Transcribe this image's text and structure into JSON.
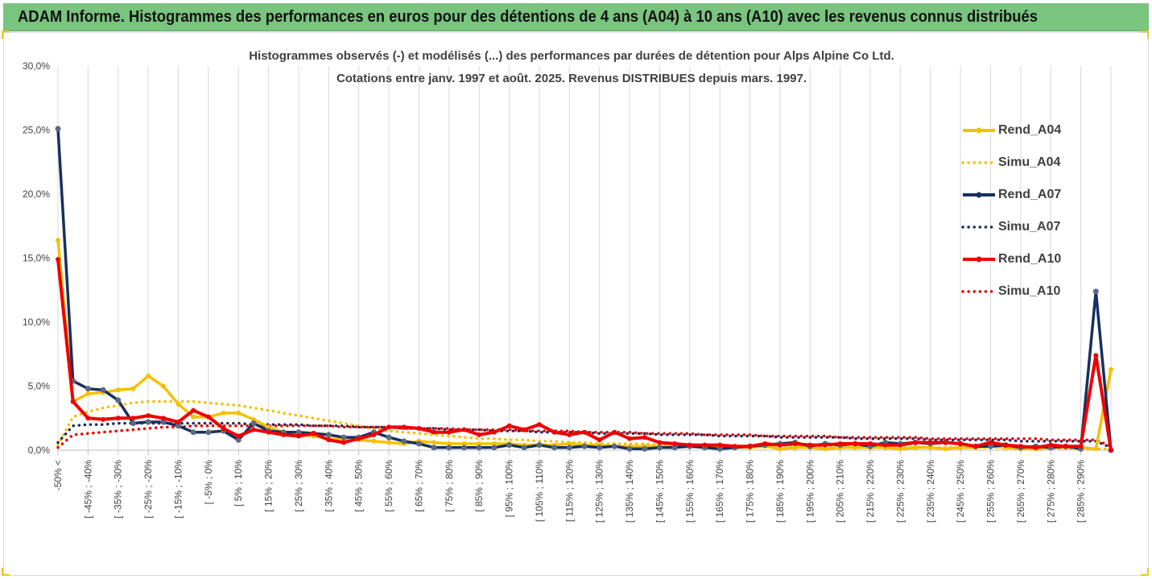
{
  "header": {
    "title": "ADAM Informe. Histogrammes des performances en euros pour des détentions de 4 ans (A04) à 10 ans (A10) avec les revenus connus distribués"
  },
  "chart_data": {
    "type": "line",
    "title_line1": "Histogrammes observés (-) et modélisés (...)  des performances par durées de détention pour Alps Alpine Co Ltd.",
    "title_line2": "Cotations entre janv. 1997 et août. 2025. Revenus DISTRIBUES depuis mars. 1997.",
    "y_ticks": [
      "0,0%",
      "5,0%",
      "10,0%",
      "15,0%",
      "20,0%",
      "25,0%",
      "30,0%"
    ],
    "ylim": [
      0,
      30
    ],
    "x_tick_labels": [
      "-50% <",
      "[ -45% ; -40%",
      "[ -35% ; -30%",
      "[ -25% ; -20%",
      "[ -15% ; -10%",
      "[ -5% ; 0%",
      "[ 5% ; 10%",
      "[ 15% ; 20%",
      "[ 25% ; 30%",
      "[ 35% ; 40%",
      "[ 45% ; 50%",
      "[ 55% ; 60%",
      "[ 65% ; 70%",
      "[ 75% ; 80%",
      "[ 85% ; 90%",
      "[ 95% ; 100%",
      "[ 105% ; 110%",
      "[ 115% ; 120%",
      "[ 125% ; 130%",
      "[ 135% ; 140%",
      "[ 145% ; 150%",
      "[ 155% ; 160%",
      "[ 165% ; 170%",
      "[ 175% ; 180%",
      "[ 185% ; 190%",
      "[ 195% ; 200%",
      "[ 205% ; 210%",
      "[ 215% ; 220%",
      "[ 225% ; 230%",
      "[ 235% ; 240%",
      "[ 245% ; 250%",
      "[ 255% ; 260%",
      "[ 265% ; 270%",
      "[ 275% ; 280%",
      "[ 285% ; 290%"
    ],
    "legend_position": "right",
    "grid": "vertical",
    "series": [
      {
        "name": "Rend_A04",
        "style": "solid",
        "color": "#f5c000",
        "values": [
          16.4,
          3.8,
          4.4,
          4.5,
          4.7,
          4.8,
          5.8,
          5.0,
          3.6,
          2.6,
          2.6,
          2.9,
          2.9,
          2.4,
          1.8,
          1.4,
          1.2,
          1.1,
          0.9,
          0.8,
          0.8,
          0.7,
          0.6,
          0.5,
          0.7,
          0.6,
          0.5,
          0.5,
          0.5,
          0.5,
          0.5,
          0.4,
          0.4,
          0.4,
          0.5,
          0.4,
          0.4,
          0.3,
          0.3,
          0.3,
          0.3,
          0.3,
          0.3,
          0.2,
          0.2,
          0.2,
          0.2,
          0.3,
          0.1,
          0.2,
          0.2,
          0.1,
          0.2,
          0.2,
          0.2,
          0.2,
          0.1,
          0.2,
          0.2,
          0.1,
          0.2,
          0.2,
          0.3,
          0.2,
          0.1,
          0.1,
          0.2,
          0.2,
          0.2,
          0.1,
          6.3
        ]
      },
      {
        "name": "Simu_A04",
        "style": "dotted",
        "color": "#f5c000",
        "values": [
          0.4,
          2.6,
          3.0,
          3.3,
          3.5,
          3.7,
          3.8,
          3.8,
          3.8,
          3.8,
          3.7,
          3.6,
          3.5,
          3.3,
          3.1,
          2.9,
          2.7,
          2.5,
          2.3,
          2.1,
          1.9,
          1.7,
          1.5,
          1.4,
          1.3,
          1.2,
          1.1,
          1.0,
          0.9,
          0.9,
          0.8,
          0.8,
          0.7,
          0.7,
          0.6,
          0.6,
          0.5,
          0.5,
          0.5,
          0.5,
          0.4,
          0.4,
          0.4,
          0.4,
          0.3,
          0.3,
          0.3,
          0.3,
          0.3,
          0.3,
          0.3,
          0.2,
          0.2,
          0.2,
          0.2,
          0.2,
          0.2,
          0.2,
          0.2,
          0.2,
          0.2,
          0.2,
          0.2,
          0.2,
          0.2,
          0.1,
          0.1,
          0.1,
          0.1,
          0.1,
          0.1
        ]
      },
      {
        "name": "Rend_A07",
        "style": "solid",
        "color": "#17305e",
        "values": [
          25.1,
          5.4,
          4.8,
          4.7,
          3.9,
          2.1,
          2.2,
          2.2,
          1.9,
          1.4,
          1.4,
          1.5,
          0.8,
          2.1,
          1.5,
          1.4,
          1.4,
          1.3,
          1.2,
          1.0,
          1.0,
          1.4,
          1.0,
          0.7,
          0.5,
          0.2,
          0.2,
          0.2,
          0.2,
          0.2,
          0.4,
          0.2,
          0.4,
          0.2,
          0.2,
          0.3,
          0.2,
          0.3,
          0.1,
          0.1,
          0.2,
          0.2,
          0.3,
          0.2,
          0.1,
          0.2,
          0.3,
          0.4,
          0.5,
          0.6,
          0.3,
          0.5,
          0.4,
          0.5,
          0.3,
          0.6,
          0.5,
          0.6,
          0.5,
          0.6,
          0.5,
          0.3,
          0.3,
          0.4,
          0.2,
          0.3,
          0.2,
          0.3,
          0.1,
          12.4,
          0.0
        ]
      },
      {
        "name": "Simu_A07",
        "style": "dotted",
        "color": "#17305e",
        "values": [
          0.6,
          1.9,
          2.0,
          2.0,
          2.1,
          2.1,
          2.1,
          2.1,
          2.1,
          2.1,
          2.1,
          2.1,
          2.1,
          2.0,
          2.0,
          2.0,
          2.0,
          1.9,
          1.9,
          1.9,
          1.8,
          1.8,
          1.8,
          1.7,
          1.7,
          1.7,
          1.6,
          1.6,
          1.6,
          1.5,
          1.5,
          1.5,
          1.4,
          1.4,
          1.4,
          1.4,
          1.3,
          1.3,
          1.3,
          1.3,
          1.2,
          1.2,
          1.2,
          1.2,
          1.1,
          1.1,
          1.1,
          1.1,
          1.0,
          1.0,
          1.0,
          1.0,
          1.0,
          0.9,
          0.9,
          0.9,
          0.9,
          0.9,
          0.8,
          0.8,
          0.8,
          0.8,
          0.8,
          0.8,
          0.7,
          0.7,
          0.7,
          0.7,
          0.7,
          0.7,
          0.2
        ]
      },
      {
        "name": "Rend_A10",
        "style": "solid",
        "color": "#ee0000",
        "values": [
          14.9,
          3.8,
          2.5,
          2.4,
          2.5,
          2.5,
          2.7,
          2.5,
          2.2,
          3.1,
          2.6,
          1.7,
          1.1,
          1.6,
          1.4,
          1.2,
          1.1,
          1.3,
          0.8,
          0.6,
          0.9,
          1.2,
          1.8,
          1.8,
          1.7,
          1.4,
          1.4,
          1.6,
          1.2,
          1.4,
          1.9,
          1.6,
          2.0,
          1.4,
          1.2,
          1.4,
          0.8,
          1.4,
          0.9,
          1.0,
          0.6,
          0.5,
          0.4,
          0.4,
          0.4,
          0.3,
          0.3,
          0.5,
          0.4,
          0.5,
          0.4,
          0.4,
          0.5,
          0.5,
          0.5,
          0.4,
          0.4,
          0.6,
          0.6,
          0.6,
          0.5,
          0.3,
          0.6,
          0.4,
          0.3,
          0.2,
          0.4,
          0.3,
          0.3,
          7.4,
          0.0
        ]
      },
      {
        "name": "Simu_A10",
        "style": "dotted",
        "color": "#ee0000",
        "values": [
          0.2,
          1.2,
          1.3,
          1.4,
          1.5,
          1.6,
          1.7,
          1.8,
          1.8,
          1.9,
          1.9,
          1.9,
          1.9,
          1.9,
          1.9,
          1.9,
          1.9,
          1.9,
          1.9,
          1.8,
          1.8,
          1.8,
          1.8,
          1.7,
          1.7,
          1.7,
          1.7,
          1.6,
          1.6,
          1.6,
          1.6,
          1.5,
          1.5,
          1.5,
          1.5,
          1.4,
          1.4,
          1.4,
          1.4,
          1.3,
          1.3,
          1.3,
          1.3,
          1.2,
          1.2,
          1.2,
          1.2,
          1.1,
          1.1,
          1.1,
          1.1,
          1.1,
          1.0,
          1.0,
          1.0,
          1.0,
          1.0,
          1.0,
          0.9,
          0.9,
          0.9,
          0.9,
          0.9,
          0.9,
          0.9,
          0.9,
          0.8,
          0.8,
          0.8,
          0.8,
          0.3
        ]
      }
    ]
  }
}
